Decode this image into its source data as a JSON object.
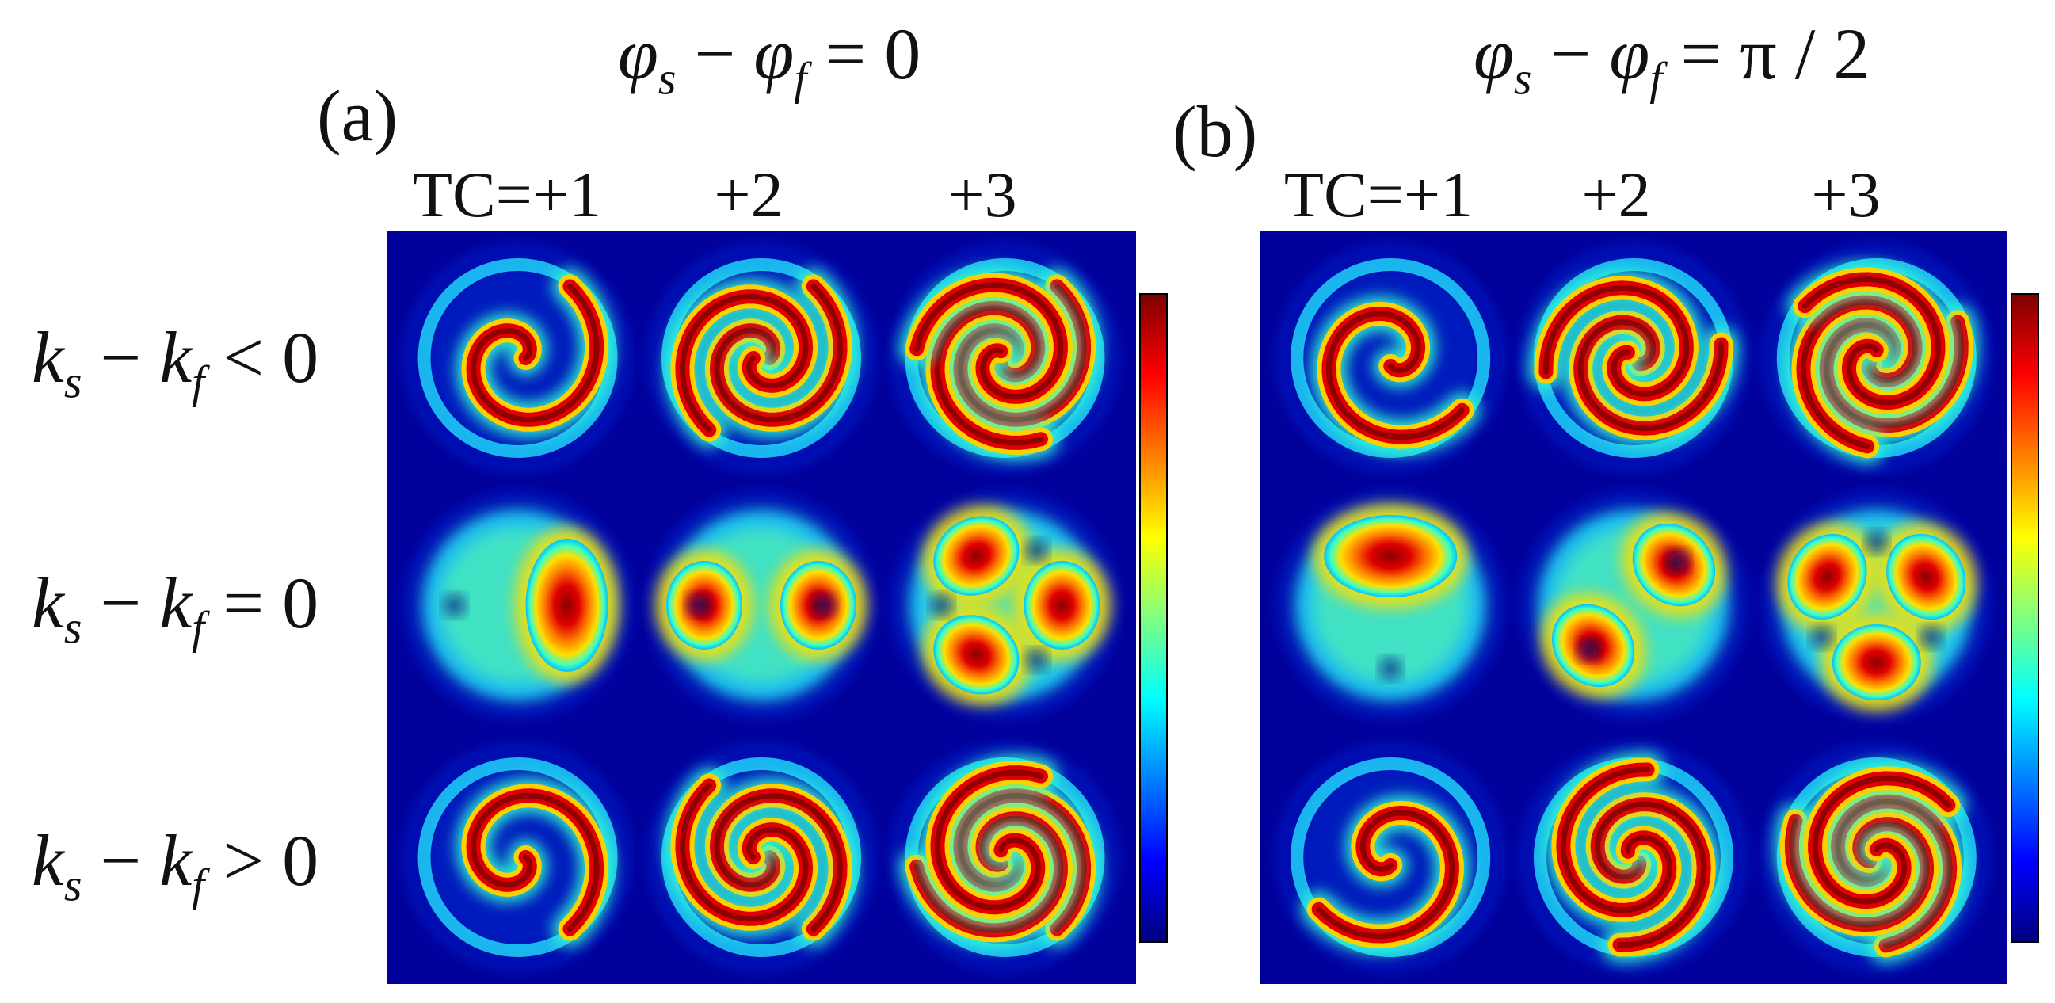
{
  "panels": [
    {
      "label": "(a)",
      "phase_condition": {
        "lhs_a": "φ",
        "sub_a": "s",
        "op": "−",
        "lhs_b": "φ",
        "sub_b": "f",
        "eq": "=",
        "rhs": "0"
      },
      "tc_labels": [
        "TC=+1",
        "+2",
        "+3"
      ]
    },
    {
      "label": "(b)",
      "phase_condition": {
        "lhs_a": "φ",
        "sub_a": "s",
        "op": "−",
        "lhs_b": "φ",
        "sub_b": "f",
        "eq": "=",
        "rhs": "π / 2"
      },
      "tc_labels": [
        "TC=+1",
        "+2",
        "+3"
      ]
    }
  ],
  "rows": [
    {
      "var_a": "k",
      "sub_a": "s",
      "op": "−",
      "var_b": "k",
      "sub_b": "f",
      "rel": "<",
      "rhs": "0"
    },
    {
      "var_a": "k",
      "sub_a": "s",
      "op": "−",
      "var_b": "k",
      "sub_b": "f",
      "rel": "=",
      "rhs": "0"
    },
    {
      "var_a": "k",
      "sub_a": "s",
      "op": "−",
      "var_b": "k",
      "sub_b": "f",
      "rel": ">",
      "rhs": "0"
    }
  ],
  "colormap": [
    "#00007f",
    "#0000ff",
    "#007fff",
    "#00ffff",
    "#7fff7f",
    "#ffff00",
    "#ff7f00",
    "#ff0000",
    "#7f0000"
  ],
  "background_color": "#00009a",
  "tile_patterns": [
    [
      {
        "type": "spiral",
        "arms": 1,
        "direction": -1,
        "rotation_deg": 0
      },
      {
        "type": "spiral",
        "arms": 2,
        "direction": -1,
        "rotation_deg": 0
      },
      {
        "type": "spiral",
        "arms": 3,
        "direction": -1,
        "rotation_deg": 0
      }
    ],
    [
      {
        "type": "lobes",
        "lobes": 1,
        "rotation_deg": 0
      },
      {
        "type": "lobes",
        "lobes": 2,
        "rotation_deg": 0
      },
      {
        "type": "lobes",
        "lobes": 3,
        "rotation_deg": 0
      }
    ],
    [
      {
        "type": "spiral",
        "arms": 1,
        "direction": 1,
        "rotation_deg": 0
      },
      {
        "type": "spiral",
        "arms": 2,
        "direction": 1,
        "rotation_deg": 0
      },
      {
        "type": "spiral",
        "arms": 3,
        "direction": 1,
        "rotation_deg": 0
      }
    ],
    [
      {
        "type": "spiral",
        "arms": 1,
        "direction": -1,
        "rotation_deg": 90
      },
      {
        "type": "spiral",
        "arms": 2,
        "direction": -1,
        "rotation_deg": 45
      },
      {
        "type": "spiral",
        "arms": 3,
        "direction": -1,
        "rotation_deg": 30
      }
    ],
    [
      {
        "type": "lobes",
        "lobes": 1,
        "rotation_deg": -90
      },
      {
        "type": "lobes",
        "lobes": 2,
        "rotation_deg": -45
      },
      {
        "type": "lobes",
        "lobes": 3,
        "rotation_deg": -30
      }
    ],
    [
      {
        "type": "spiral",
        "arms": 1,
        "direction": 1,
        "rotation_deg": 90
      },
      {
        "type": "spiral",
        "arms": 2,
        "direction": 1,
        "rotation_deg": 45
      },
      {
        "type": "spiral",
        "arms": 3,
        "direction": 1,
        "rotation_deg": 30
      }
    ]
  ]
}
